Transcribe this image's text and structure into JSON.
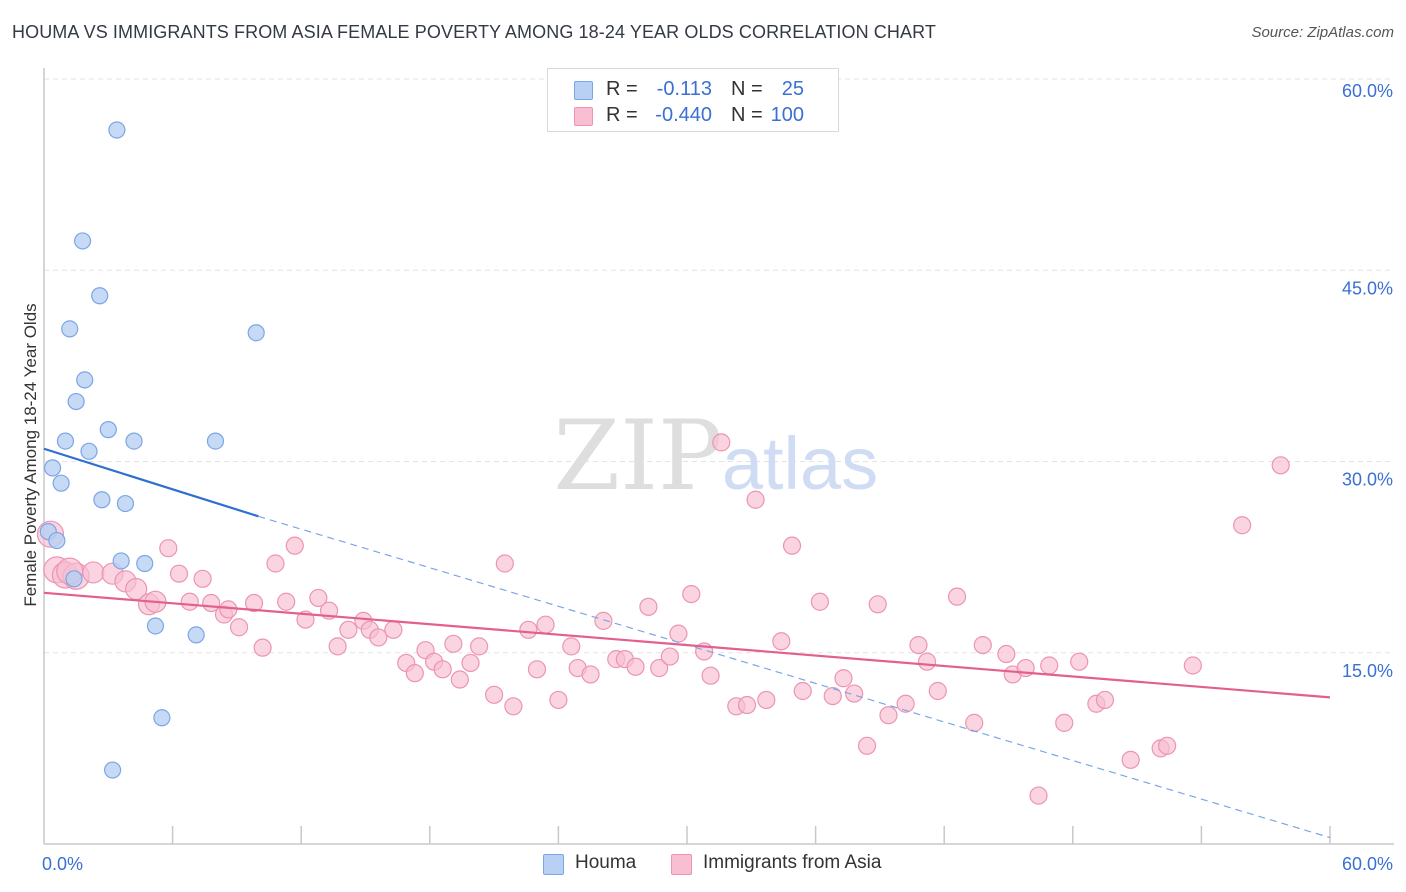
{
  "header": {
    "title": "HOUMA VS IMMIGRANTS FROM ASIA FEMALE POVERTY AMONG 18-24 YEAR OLDS CORRELATION CHART",
    "source": "Source: ZipAtlas.com"
  },
  "legend": {
    "r_label": "R =",
    "n_label": "N =",
    "rows": [
      {
        "r": "-0.113",
        "n": "25"
      },
      {
        "r": "-0.440",
        "n": "100"
      }
    ]
  },
  "watermark": {
    "zip": "ZIP",
    "atlas": "atlas"
  },
  "colors": {
    "houma_fill": "#b8d0f3",
    "houma_stroke": "#7ba6e6",
    "houma_line": "#2f6fd0",
    "asia_fill": "#f7bfd1",
    "asia_stroke": "#ec94b2",
    "asia_line": "#e3608c",
    "axis_value": "#3a6fd4",
    "grid": "#e3e3e3"
  },
  "chart_data": {
    "type": "scatter",
    "title": "HOUMA VS IMMIGRANTS FROM ASIA FEMALE POVERTY AMONG 18-24 YEAR OLDS CORRELATION CHART",
    "xlabel": "",
    "ylabel": "Female Poverty Among 18-24 Year Olds",
    "xlim": [
      0,
      60
    ],
    "ylim": [
      0,
      60
    ],
    "x_tick_labels": [
      "0.0%",
      "60.0%"
    ],
    "y_tick_labels": [
      "15.0%",
      "30.0%",
      "45.0%",
      "60.0%"
    ],
    "y_ticks": [
      15,
      30,
      45,
      60
    ],
    "grid": true,
    "legend_position": "bottom",
    "series": [
      {
        "name": "Houma",
        "R": -0.113,
        "N": 25,
        "points": [
          [
            3.4,
            56.0
          ],
          [
            1.8,
            47.3
          ],
          [
            2.6,
            43.0
          ],
          [
            1.2,
            40.4
          ],
          [
            9.9,
            40.1
          ],
          [
            1.9,
            36.4
          ],
          [
            1.5,
            34.7
          ],
          [
            3.0,
            32.5
          ],
          [
            1.0,
            31.6
          ],
          [
            4.2,
            31.6
          ],
          [
            8.0,
            31.6
          ],
          [
            2.1,
            30.8
          ],
          [
            0.4,
            29.5
          ],
          [
            0.8,
            28.3
          ],
          [
            2.7,
            27.0
          ],
          [
            3.8,
            26.7
          ],
          [
            0.2,
            24.5
          ],
          [
            0.6,
            23.8
          ],
          [
            3.6,
            22.2
          ],
          [
            4.7,
            22.0
          ],
          [
            1.4,
            20.8
          ],
          [
            5.2,
            17.1
          ],
          [
            7.1,
            16.4
          ],
          [
            5.5,
            9.9
          ],
          [
            3.2,
            5.8
          ]
        ],
        "trend_solid": [
          [
            0,
            31.0
          ],
          [
            10,
            25.7
          ]
        ],
        "trend_dashed": [
          [
            10,
            25.7
          ],
          [
            60,
            0.5
          ]
        ]
      },
      {
        "name": "Immigrants from Asia",
        "R": -0.44,
        "N": 100,
        "points": [
          [
            0.3,
            24.3
          ],
          [
            0.6,
            21.5
          ],
          [
            1.0,
            21.1
          ],
          [
            1.5,
            21.0
          ],
          [
            2.3,
            21.3
          ],
          [
            3.2,
            21.2
          ],
          [
            3.8,
            20.6
          ],
          [
            4.3,
            20.0
          ],
          [
            4.9,
            18.8
          ],
          [
            5.2,
            19.0
          ],
          [
            5.8,
            23.2
          ],
          [
            6.3,
            21.2
          ],
          [
            6.8,
            19.0
          ],
          [
            7.4,
            20.8
          ],
          [
            7.8,
            18.9
          ],
          [
            8.4,
            18.0
          ],
          [
            8.6,
            18.4
          ],
          [
            9.1,
            17.0
          ],
          [
            9.8,
            18.9
          ],
          [
            10.2,
            15.4
          ],
          [
            10.8,
            22.0
          ],
          [
            11.3,
            19.0
          ],
          [
            11.7,
            23.4
          ],
          [
            12.2,
            17.6
          ],
          [
            12.8,
            19.3
          ],
          [
            13.3,
            18.3
          ],
          [
            13.7,
            15.5
          ],
          [
            14.2,
            16.8
          ],
          [
            14.9,
            17.5
          ],
          [
            15.2,
            16.8
          ],
          [
            15.6,
            16.2
          ],
          [
            16.3,
            16.8
          ],
          [
            16.9,
            14.2
          ],
          [
            17.3,
            13.4
          ],
          [
            17.8,
            15.2
          ],
          [
            18.2,
            14.3
          ],
          [
            18.6,
            13.7
          ],
          [
            19.1,
            15.7
          ],
          [
            19.4,
            12.9
          ],
          [
            19.9,
            14.2
          ],
          [
            20.3,
            15.5
          ],
          [
            21.0,
            11.7
          ],
          [
            21.5,
            22.0
          ],
          [
            21.9,
            10.8
          ],
          [
            22.6,
            16.8
          ],
          [
            23.0,
            13.7
          ],
          [
            23.4,
            17.2
          ],
          [
            24.0,
            11.3
          ],
          [
            24.6,
            15.5
          ],
          [
            24.9,
            13.8
          ],
          [
            25.5,
            13.3
          ],
          [
            26.1,
            17.5
          ],
          [
            26.7,
            14.5
          ],
          [
            27.1,
            14.5
          ],
          [
            27.6,
            13.9
          ],
          [
            28.2,
            18.6
          ],
          [
            28.7,
            13.8
          ],
          [
            29.2,
            14.7
          ],
          [
            29.6,
            16.5
          ],
          [
            30.2,
            19.6
          ],
          [
            30.8,
            15.1
          ],
          [
            31.1,
            13.2
          ],
          [
            31.6,
            31.5
          ],
          [
            32.3,
            10.8
          ],
          [
            32.8,
            10.9
          ],
          [
            33.2,
            27.0
          ],
          [
            33.7,
            11.3
          ],
          [
            34.4,
            15.9
          ],
          [
            34.9,
            23.4
          ],
          [
            35.4,
            12.0
          ],
          [
            36.2,
            19.0
          ],
          [
            36.8,
            11.6
          ],
          [
            37.3,
            13.0
          ],
          [
            37.8,
            11.8
          ],
          [
            38.4,
            7.7
          ],
          [
            38.9,
            18.8
          ],
          [
            39.4,
            10.1
          ],
          [
            40.2,
            11.0
          ],
          [
            40.8,
            15.6
          ],
          [
            41.2,
            14.3
          ],
          [
            41.7,
            12.0
          ],
          [
            42.6,
            19.4
          ],
          [
            43.4,
            9.5
          ],
          [
            43.8,
            15.6
          ],
          [
            44.9,
            14.9
          ],
          [
            45.2,
            13.3
          ],
          [
            45.8,
            13.8
          ],
          [
            46.4,
            3.8
          ],
          [
            46.9,
            14.0
          ],
          [
            47.6,
            9.5
          ],
          [
            48.3,
            14.3
          ],
          [
            49.1,
            11.0
          ],
          [
            49.5,
            11.3
          ],
          [
            50.7,
            6.6
          ],
          [
            52.1,
            7.5
          ],
          [
            52.4,
            7.7
          ],
          [
            53.6,
            14.0
          ],
          [
            55.9,
            25.0
          ],
          [
            57.7,
            29.7
          ],
          [
            1.2,
            21.4
          ]
        ],
        "trend_solid": [
          [
            0,
            19.7
          ],
          [
            60,
            11.5
          ]
        ]
      }
    ]
  }
}
